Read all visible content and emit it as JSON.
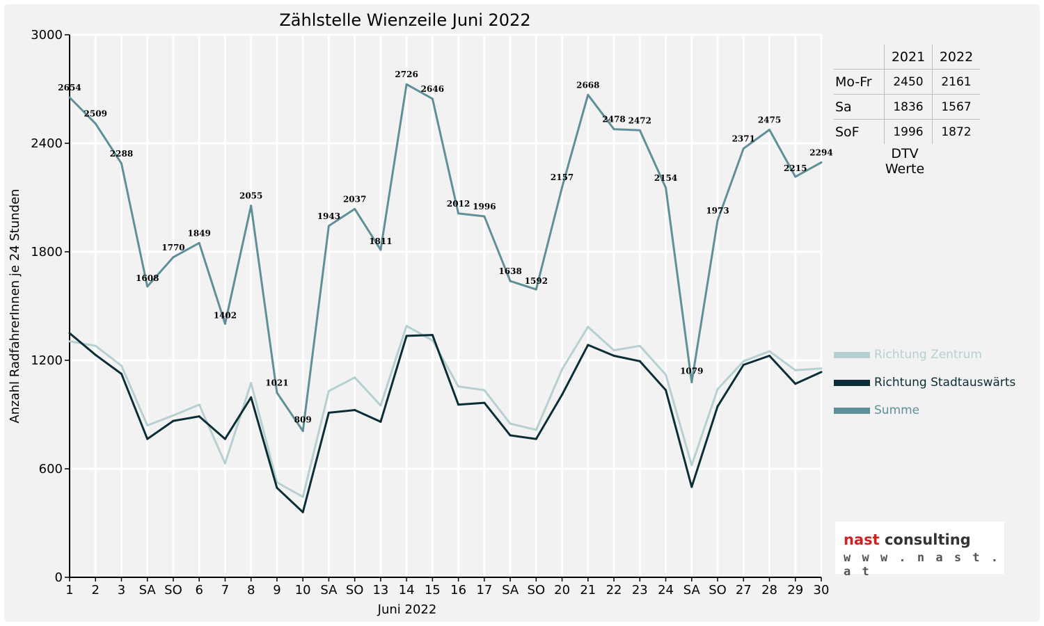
{
  "chart_data": {
    "type": "line",
    "title": "Zählstelle Wienzeile Juni 2022",
    "xlabel": "Juni 2022",
    "ylabel": "Anzahl RadfahrerInnen je 24 Stunden",
    "ylim": [
      0,
      3000
    ],
    "yticks": [
      "0",
      "600",
      "1200",
      "1800",
      "2400",
      "3000"
    ],
    "grid": true,
    "legend_position": "right",
    "categories": [
      "1",
      "2",
      "3",
      "SA",
      "SO",
      "6",
      "7",
      "8",
      "9",
      "10",
      "SA",
      "SO",
      "13",
      "14",
      "15",
      "16",
      "17",
      "SA",
      "SO",
      "20",
      "21",
      "22",
      "23",
      "24",
      "SA",
      "SO",
      "27",
      "28",
      "29",
      "30"
    ],
    "red_categories": [
      4,
      5,
      15,
      18,
      25
    ],
    "series": [
      {
        "name": "Richtung Zentrum",
        "color": "#b6d0d2",
        "values": [
          1305,
          1280,
          1170,
          840,
          895,
          955,
          630,
          1075,
          525,
          445,
          1030,
          1105,
          950,
          1390,
          1310,
          1055,
          1035,
          850,
          815,
          1150,
          1385,
          1255,
          1280,
          1120,
          620,
          1040,
          1195,
          1250,
          1145,
          1155
        ]
      },
      {
        "name": "Richtung Stadtauswärts",
        "color": "#0b2e36",
        "values": [
          1350,
          1230,
          1125,
          765,
          865,
          890,
          765,
          995,
          495,
          360,
          910,
          925,
          860,
          1335,
          1340,
          955,
          965,
          785,
          765,
          1010,
          1285,
          1225,
          1195,
          1035,
          500,
          945,
          1175,
          1225,
          1070,
          1135
        ]
      },
      {
        "name": "Summe",
        "color": "#5f8f98",
        "values": [
          2654,
          2509,
          2288,
          1608,
          1770,
          1849,
          1402,
          2055,
          1021,
          809,
          1943,
          2037,
          1811,
          2726,
          2646,
          2012,
          1996,
          1638,
          1592,
          2157,
          2668,
          2478,
          2472,
          2154,
          1079,
          1973,
          2371,
          2475,
          2215,
          2294
        ]
      }
    ],
    "data_labels": [
      "2654",
      "2509",
      "2288",
      "1608",
      "1770",
      "1849",
      "1402",
      "2055",
      "1021",
      "809",
      "1943",
      "2037",
      "1811",
      "2726",
      "2646",
      "2012",
      "1996",
      "1638",
      "1592",
      "2157",
      "2668",
      "2478",
      "2472",
      "2154",
      "1079",
      "1973",
      "2371",
      "2475",
      "2215",
      "2294"
    ]
  },
  "dtv_table": {
    "years": [
      "2021",
      "2022"
    ],
    "rows": [
      {
        "label": "Mo-Fr",
        "v2021": "2450",
        "v2022": "2161"
      },
      {
        "label": "Sa",
        "v2021": "1836",
        "v2022": "1567"
      },
      {
        "label": "SoF",
        "v2021": "1996",
        "v2022": "1872"
      }
    ],
    "caption": "DTV Werte"
  },
  "legend": [
    {
      "label": "Richtung Zentrum",
      "color": "#b6d0d2"
    },
    {
      "label": "Richtung Stadtauswärts",
      "color": "#0b2e36"
    },
    {
      "label": "Summe",
      "color": "#5f8f98"
    }
  ],
  "logo": {
    "word1": "nast",
    "word2": " consulting",
    "word1_color": "#cc2222",
    "word2_color": "#333333",
    "url": "w w w . n a s t . a t"
  }
}
